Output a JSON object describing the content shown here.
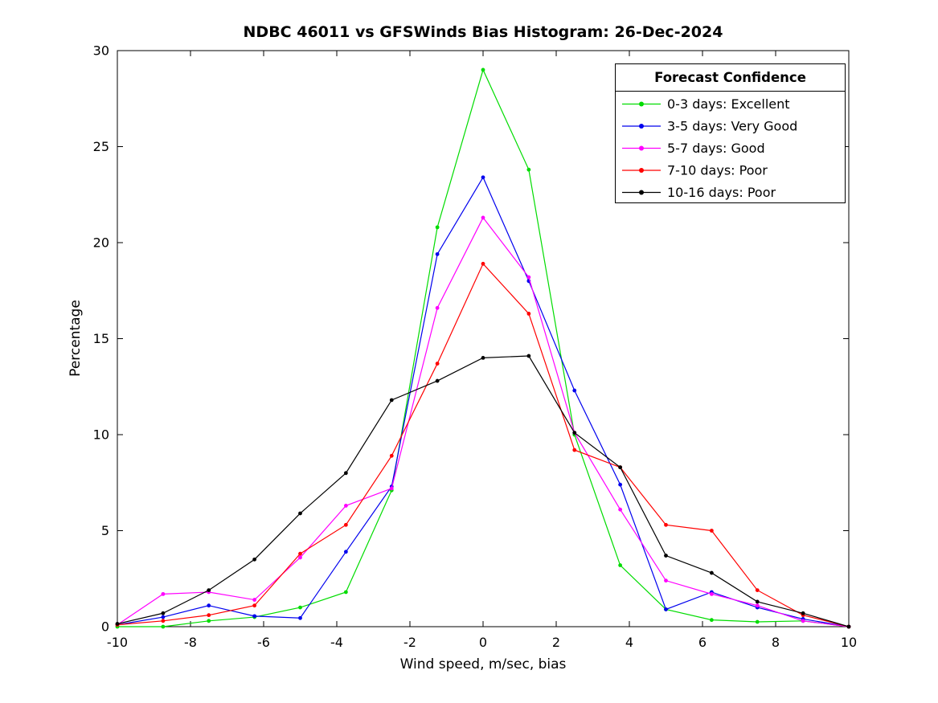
{
  "figure": {
    "background": "#ffffff",
    "axis_color": "#000000"
  },
  "chart_data": {
    "type": "line",
    "title": "NDBC 46011 vs GFSWinds Bias Histogram: 26-Dec-2024",
    "xlabel": "Wind speed, m/sec, bias",
    "ylabel": "Percentage",
    "xlim": [
      -10,
      10
    ],
    "ylim": [
      0,
      30
    ],
    "xticks": [
      -10,
      -8,
      -6,
      -4,
      -2,
      0,
      2,
      4,
      6,
      8,
      10
    ],
    "yticks": [
      0,
      5,
      10,
      15,
      20,
      25,
      30
    ],
    "grid": false,
    "legend_title": "Forecast Confidence",
    "legend_position": "top-right",
    "marker": "point",
    "x": [
      -10,
      -8.75,
      -7.5,
      -6.25,
      -5,
      -3.75,
      -2.5,
      -1.25,
      0,
      1.25,
      2.5,
      3.75,
      5,
      6.25,
      7.5,
      8.75,
      10
    ],
    "series": [
      {
        "name": "0-3 days: Excellent",
        "color": "#00dc00",
        "values": [
          0,
          0,
          0.3,
          0.5,
          1.0,
          1.8,
          7.1,
          20.8,
          29.0,
          23.8,
          10.0,
          3.2,
          0.9,
          0.35,
          0.25,
          0.3,
          0
        ]
      },
      {
        "name": "3-5 days: Very Good",
        "color": "#0000ee",
        "values": [
          0.1,
          0.5,
          1.1,
          0.55,
          0.45,
          3.9,
          7.3,
          19.4,
          23.4,
          18.0,
          12.3,
          7.4,
          0.9,
          1.8,
          1.0,
          0.4,
          0
        ]
      },
      {
        "name": "5-7 days: Good",
        "color": "#ff00ff",
        "values": [
          0.1,
          1.7,
          1.8,
          1.4,
          3.6,
          6.3,
          7.2,
          16.6,
          21.3,
          18.2,
          10.1,
          6.1,
          2.4,
          1.7,
          1.1,
          0.3,
          0
        ]
      },
      {
        "name": "7-10 days: Poor",
        "color": "#ff0000",
        "values": [
          0.1,
          0.3,
          0.6,
          1.1,
          3.8,
          5.3,
          8.9,
          13.7,
          18.9,
          16.3,
          9.2,
          8.3,
          5.3,
          5.0,
          1.9,
          0.6,
          0
        ]
      },
      {
        "name": "10-16 days: Poor",
        "color": "#000000",
        "values": [
          0.15,
          0.7,
          1.9,
          3.5,
          5.9,
          8.0,
          11.8,
          12.8,
          14.0,
          14.1,
          10.1,
          8.3,
          3.7,
          2.8,
          1.3,
          0.7,
          0
        ]
      }
    ]
  }
}
